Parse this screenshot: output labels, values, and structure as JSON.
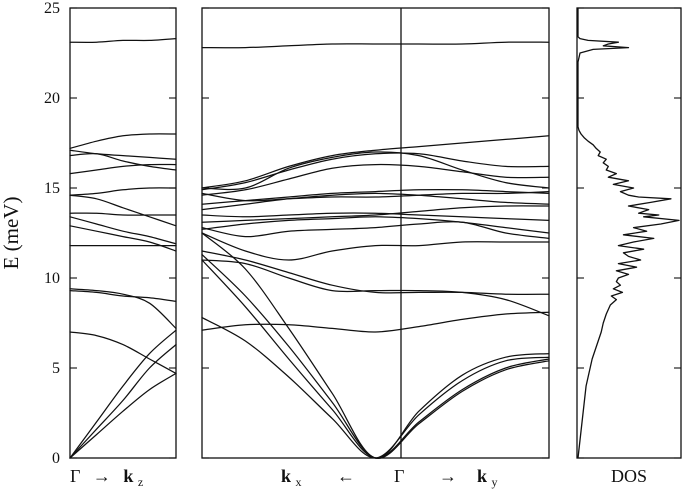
{
  "chart_data": {
    "type": "line",
    "ylabel": "E (meV)",
    "ylim": [
      0,
      25
    ],
    "yticks": [
      0,
      5,
      10,
      15,
      20,
      25
    ],
    "grid": false,
    "panels": [
      {
        "id": "gamma-kz",
        "xlabel_parts": [
          "Γ",
          "→",
          "k",
          "z"
        ],
        "x": [
          0,
          0.25,
          0.5,
          0.75,
          1.0
        ],
        "series": [
          {
            "values": [
              0.0,
              1.3,
              2.6,
              3.8,
              4.7
            ]
          },
          {
            "values": [
              0.0,
              1.6,
              3.2,
              5.0,
              6.3
            ]
          },
          {
            "values": [
              0.0,
              2.0,
              4.0,
              5.8,
              7.1
            ]
          },
          {
            "values": [
              7.0,
              6.8,
              6.3,
              5.5,
              4.7
            ]
          },
          {
            "values": [
              9.3,
              9.2,
              9.0,
              8.9,
              8.7
            ]
          },
          {
            "values": [
              9.4,
              9.3,
              9.1,
              8.6,
              7.2
            ]
          },
          {
            "values": [
              11.8,
              11.8,
              11.8,
              11.8,
              11.8
            ]
          },
          {
            "values": [
              12.9,
              12.6,
              12.3,
              12.0,
              11.5
            ]
          },
          {
            "values": [
              13.4,
              13.0,
              12.6,
              12.3,
              11.9
            ]
          },
          {
            "values": [
              13.6,
              13.6,
              13.5,
              13.5,
              13.5
            ]
          },
          {
            "values": [
              14.6,
              14.4,
              13.9,
              13.4,
              12.9
            ]
          },
          {
            "values": [
              14.6,
              14.7,
              14.9,
              15.0,
              15.0
            ]
          },
          {
            "values": [
              15.8,
              16.0,
              16.2,
              16.3,
              16.3
            ]
          },
          {
            "values": [
              16.8,
              16.9,
              16.5,
              16.2,
              16.0
            ]
          },
          {
            "values": [
              17.1,
              16.9,
              16.8,
              16.7,
              16.6
            ]
          },
          {
            "values": [
              17.2,
              17.6,
              17.9,
              18.0,
              18.0
            ]
          },
          {
            "values": [
              23.1,
              23.1,
              23.2,
              23.2,
              23.3
            ]
          }
        ]
      },
      {
        "id": "kx-gamma-ky",
        "xlabel_parts": [
          "k",
          "x",
          "←",
          "Γ",
          "→",
          "k",
          "y"
        ],
        "x": [
          -1.0,
          -0.75,
          -0.5,
          -0.25,
          0.0,
          0.25,
          0.5,
          0.75,
          1.0
        ],
        "series": [
          {
            "values": [
              11.0,
              8.4,
              5.5,
              2.7,
              0.0,
              2.0,
              3.8,
              5.0,
              5.5
            ]
          },
          {
            "values": [
              11.3,
              9.0,
              6.2,
              3.1,
              0.0,
              1.9,
              3.7,
              4.9,
              5.4
            ]
          },
          {
            "values": [
              12.5,
              10.5,
              7.2,
              3.6,
              0.0,
              2.6,
              4.6,
              5.6,
              5.8
            ]
          },
          {
            "values": [
              7.8,
              6.5,
              4.5,
              2.2,
              0.0,
              2.4,
              4.3,
              5.4,
              5.6
            ]
          },
          {
            "values": [
              7.1,
              7.4,
              7.4,
              7.2,
              7.0,
              7.3,
              7.7,
              8.0,
              8.1
            ]
          },
          {
            "values": [
              11.0,
              10.8,
              10.0,
              9.3,
              9.3,
              9.3,
              9.2,
              8.8,
              7.9
            ]
          },
          {
            "values": [
              11.5,
              11.0,
              10.3,
              9.6,
              9.2,
              9.2,
              9.2,
              9.1,
              9.1
            ]
          },
          {
            "values": [
              12.5,
              11.5,
              11.0,
              11.5,
              11.8,
              11.8,
              12.0,
              12.0,
              12.0
            ]
          },
          {
            "values": [
              12.8,
              12.3,
              12.6,
              12.7,
              12.8,
              13.0,
              13.1,
              12.5,
              12.2
            ]
          },
          {
            "values": [
              12.7,
              13.0,
              13.2,
              13.3,
              13.4,
              13.3,
              13.1,
              12.8,
              12.5
            ]
          },
          {
            "values": [
              13.1,
              13.2,
              13.3,
              13.4,
              13.5,
              13.7,
              13.9,
              14.0,
              14.0
            ]
          },
          {
            "values": [
              13.5,
              13.4,
              13.5,
              13.6,
              13.6,
              13.5,
              13.4,
              13.3,
              13.2
            ]
          },
          {
            "values": [
              13.8,
              14.1,
              14.4,
              14.6,
              14.7,
              14.6,
              14.4,
              14.2,
              14.1
            ]
          },
          {
            "values": [
              14.1,
              14.3,
              14.5,
              14.7,
              14.8,
              14.9,
              14.9,
              14.8,
              14.7
            ]
          },
          {
            "values": [
              14.7,
              14.3,
              14.4,
              14.5,
              14.5,
              14.6,
              14.7,
              14.7,
              14.8
            ]
          },
          {
            "values": [
              15.0,
              15.0,
              16.1,
              16.7,
              17.0,
              16.8,
              16.0,
              15.3,
              15.0
            ]
          },
          {
            "values": [
              14.6,
              14.9,
              15.5,
              16.1,
              16.3,
              16.2,
              15.9,
              15.6,
              15.6
            ]
          },
          {
            "values": [
              14.9,
              15.3,
              16.0,
              16.6,
              16.9,
              16.9,
              16.5,
              16.2,
              16.2
            ]
          },
          {
            "values": [
              15.0,
              15.4,
              16.2,
              16.8,
              17.1,
              17.3,
              17.5,
              17.7,
              17.9
            ]
          },
          {
            "values": [
              22.8,
              22.8,
              22.9,
              23.0,
              23.0,
              23.0,
              23.0,
              23.1,
              23.1
            ]
          }
        ]
      }
    ],
    "dos": {
      "xlabel": "DOS",
      "energy": [
        0,
        1,
        2,
        3,
        4,
        4.5,
        5,
        5.5,
        6,
        6.5,
        7,
        7.5,
        8,
        8.5,
        8.8,
        9,
        9.2,
        9.4,
        9.6,
        9.8,
        10,
        10.2,
        10.4,
        10.6,
        10.8,
        11,
        11.2,
        11.4,
        11.6,
        11.8,
        12,
        12.2,
        12.4,
        12.6,
        12.8,
        13,
        13.2,
        13.4,
        13.5,
        13.6,
        13.8,
        14,
        14.2,
        14.4,
        14.5,
        14.6,
        14.8,
        15,
        15.2,
        15.4,
        15.6,
        15.8,
        16,
        16.2,
        16.4,
        16.6,
        16.8,
        17,
        17.2,
        17.4,
        17.6,
        17.8,
        18.0,
        18.2,
        18.4,
        19,
        20,
        21,
        22,
        22.5,
        22.7,
        22.8,
        22.9,
        23.0,
        23.1,
        23.2,
        23.3,
        23.4,
        23.6,
        24,
        25
      ],
      "values": [
        0.0,
        0.02,
        0.04,
        0.06,
        0.08,
        0.1,
        0.12,
        0.14,
        0.17,
        0.2,
        0.23,
        0.25,
        0.28,
        0.32,
        0.38,
        0.33,
        0.44,
        0.35,
        0.42,
        0.38,
        0.4,
        0.5,
        0.38,
        0.58,
        0.4,
        0.62,
        0.5,
        0.45,
        0.65,
        0.4,
        0.55,
        0.75,
        0.45,
        0.68,
        0.55,
        0.82,
        1.0,
        0.65,
        0.8,
        0.6,
        0.7,
        0.5,
        0.72,
        0.92,
        0.6,
        0.5,
        0.42,
        0.55,
        0.35,
        0.5,
        0.3,
        0.38,
        0.28,
        0.3,
        0.25,
        0.28,
        0.2,
        0.22,
        0.18,
        0.15,
        0.1,
        0.06,
        0.03,
        0.01,
        0.0,
        0.0,
        0.0,
        0.0,
        0.0,
        0.02,
        0.15,
        0.5,
        0.25,
        0.3,
        0.4,
        0.1,
        0.02,
        0.0,
        0.0,
        0.0,
        0.0
      ]
    }
  }
}
